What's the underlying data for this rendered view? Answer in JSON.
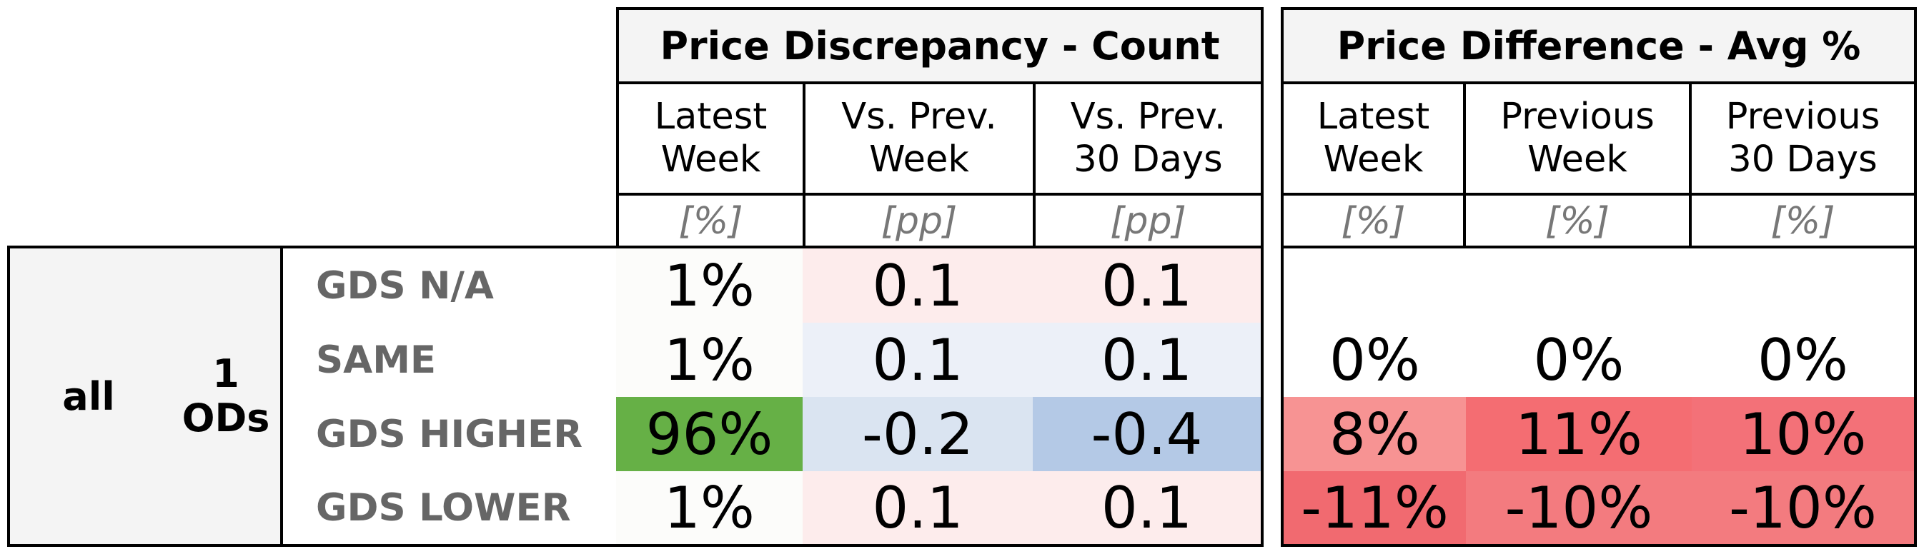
{
  "groups": [
    {
      "title": "Price Discrepancy - Count",
      "columns": [
        {
          "label": "Latest\nWeek",
          "unit": "[%]"
        },
        {
          "label": "Vs. Prev.\nWeek",
          "unit": "[pp]"
        },
        {
          "label": "Vs. Prev.\n30 Days",
          "unit": "[pp]"
        }
      ]
    },
    {
      "title": "Price Difference - Avg %",
      "columns": [
        {
          "label": "Latest\nWeek",
          "unit": "[%]"
        },
        {
          "label": "Previous\nWeek",
          "unit": "[%]"
        },
        {
          "label": "Previous\n30 Days",
          "unit": "[%]"
        }
      ]
    }
  ],
  "row_header": {
    "level1": "all",
    "level2": "1\nODs"
  },
  "rows": [
    {
      "label": "GDS N/A",
      "count": [
        "1%",
        "0.1",
        "0.1"
      ],
      "count_bg": [
        "#fcfcfa",
        "#fdecec",
        "#fdecec"
      ],
      "avg": [
        "",
        "",
        ""
      ],
      "avg_bg": [
        "#ffffff",
        "#ffffff",
        "#ffffff"
      ]
    },
    {
      "label": "SAME",
      "count": [
        "1%",
        "0.1",
        "0.1"
      ],
      "count_bg": [
        "#fcfcfa",
        "#ecf0f8",
        "#ecf0f8"
      ],
      "avg": [
        "0%",
        "0%",
        "0%"
      ],
      "avg_bg": [
        "#ffffff",
        "#ffffff",
        "#ffffff"
      ]
    },
    {
      "label": "GDS HIGHER",
      "count": [
        "96%",
        "-0.2",
        "-0.4"
      ],
      "count_bg": [
        "#66b046",
        "#dae4f1",
        "#b4c9e6"
      ],
      "avg": [
        "8%",
        "11%",
        "10%"
      ],
      "avg_bg": [
        "#f79393",
        "#f46d72",
        "#f37178"
      ]
    },
    {
      "label": "GDS LOWER",
      "count": [
        "1%",
        "0.1",
        "0.1"
      ],
      "count_bg": [
        "#fcfcfa",
        "#fdecec",
        "#fdecec"
      ],
      "avg": [
        "-11%",
        "-10%",
        "-10%"
      ],
      "avg_bg": [
        "#f16a70",
        "#f37b7f",
        "#f37b7f"
      ]
    }
  ]
}
